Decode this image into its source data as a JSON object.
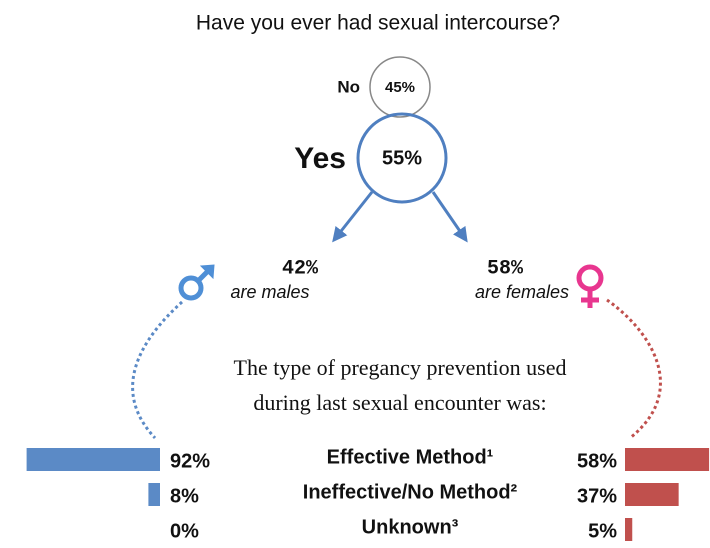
{
  "title": "Have you ever had sexual intercourse?",
  "answers": [
    {
      "label": "No",
      "value": 45,
      "value_label": "45%"
    },
    {
      "label": "Yes",
      "value": 55,
      "value_label": "55%"
    }
  ],
  "genders": [
    {
      "value": 42,
      "value_label": "42%",
      "label": "are males",
      "color": "#4f8fd6"
    },
    {
      "value": 58,
      "value_label": "58%",
      "label": "are females",
      "color": "#e8368f"
    }
  ],
  "subtitle": [
    "The type of pregancy prevention used",
    "during last sexual encounter was:"
  ],
  "methods": [
    "Effective Method¹",
    "Ineffective/No Method²",
    "Unknown³"
  ],
  "male": {
    "values": [
      92,
      8,
      0
    ],
    "value_labels": [
      "92%",
      "8%",
      "0%"
    ],
    "color": "#5b8ac6"
  },
  "female": {
    "values": [
      58,
      37,
      5
    ],
    "value_labels": [
      "58%",
      "37%",
      "5%"
    ],
    "color": "#c0504d"
  }
}
